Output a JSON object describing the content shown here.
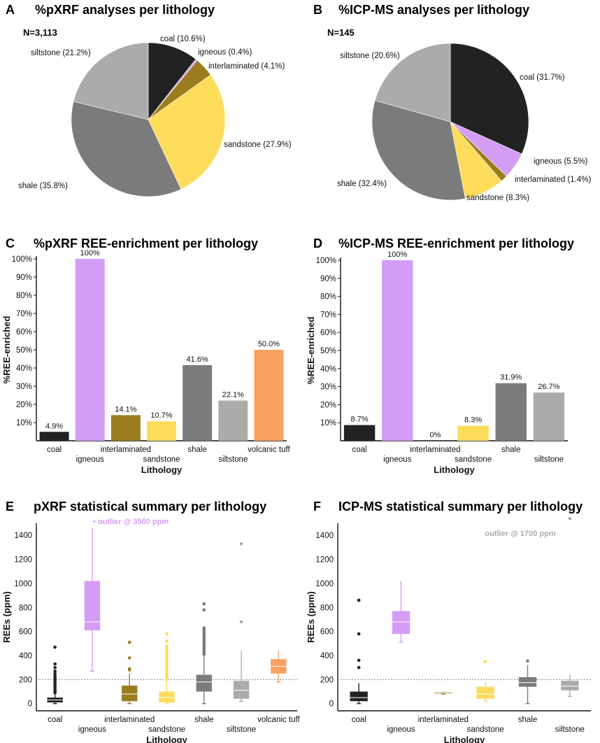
{
  "panels": {
    "A": {
      "letter": "A",
      "title": "%pXRF analyses per lithology",
      "n_label": "N=3,113"
    },
    "B": {
      "letter": "B",
      "title": "%ICP-MS analyses per lithology",
      "n_label": "N=145"
    },
    "C": {
      "letter": "C",
      "title": "%pXRF REE-enrichment per lithology"
    },
    "D": {
      "letter": "D",
      "title": "%ICP-MS REE-enrichment per lithology"
    },
    "E": {
      "letter": "E",
      "title": "pXRF statistical summary per lithology",
      "outlier_note": "• outlier @ 3500 ppm"
    },
    "F": {
      "letter": "F",
      "title": "ICP-MS statistical summary per lithology",
      "outlier_note": "outlier @ 1700 ppm"
    }
  },
  "colors": {
    "coal": "#222222",
    "igneous": "#d59cf5",
    "interlaminated": "#9b7d1f",
    "sandstone": "#fddc5c",
    "shale": "#7b7b7b",
    "siltstone": "#ababab",
    "volcanic tuff": "#f9a160"
  },
  "chart_data": [
    {
      "id": "A",
      "type": "pie",
      "title": "%pXRF analyses per lithology",
      "slices": [
        {
          "name": "coal",
          "value": 10.6,
          "label": "coal (10.6%)"
        },
        {
          "name": "igneous",
          "value": 0.4,
          "label": "igneous (0.4%)"
        },
        {
          "name": "interlaminated",
          "value": 4.1,
          "label": "interlaminated (4.1%)"
        },
        {
          "name": "sandstone",
          "value": 27.9,
          "label": "sandstone (27.9%)"
        },
        {
          "name": "shale",
          "value": 35.8,
          "label": "shale (35.8%)"
        },
        {
          "name": "siltstone",
          "value": 21.2,
          "label": "siltstone (21.2%)"
        }
      ]
    },
    {
      "id": "B",
      "type": "pie",
      "title": "%ICP-MS analyses per lithology",
      "slices": [
        {
          "name": "coal",
          "value": 31.7,
          "label": "coal (31.7%)"
        },
        {
          "name": "igneous",
          "value": 5.5,
          "label": "igneous (5.5%)"
        },
        {
          "name": "interlaminated",
          "value": 1.4,
          "label": "interlaminated (1.4%)"
        },
        {
          "name": "sandstone",
          "value": 8.3,
          "label": "sandstone (8.3%)"
        },
        {
          "name": "shale",
          "value": 32.4,
          "label": "shale (32.4%)"
        },
        {
          "name": "siltstone",
          "value": 20.6,
          "label": "siltstone (20.6%)"
        }
      ]
    },
    {
      "id": "C",
      "type": "bar",
      "title": "%pXRF REE-enrichment per lithology",
      "categories": [
        "coal",
        "igneous",
        "interlaminated",
        "sandstone",
        "shale",
        "siltstone",
        "volcanic tuff"
      ],
      "values": [
        4.9,
        100,
        14.1,
        10.7,
        41.6,
        22.1,
        50.0
      ],
      "data_labels": [
        "4.9%",
        "100%",
        "14.1%",
        "10.7%",
        "41.6%",
        "22.1%",
        "50.0%"
      ],
      "xlabel": "Lithology",
      "ylabel": "%REE-enriched",
      "ylim": [
        0,
        100
      ],
      "yticks": [
        "10%",
        "20%",
        "30%",
        "40%",
        "50%",
        "60%",
        "70%",
        "80%",
        "90%",
        "100%"
      ]
    },
    {
      "id": "D",
      "type": "bar",
      "title": "%ICP-MS REE-enrichment per lithology",
      "categories": [
        "coal",
        "igneous",
        "interlaminated",
        "sandstone",
        "shale",
        "siltstone"
      ],
      "values": [
        8.7,
        100,
        0,
        8.3,
        31.9,
        26.7
      ],
      "data_labels": [
        "8.7%",
        "100%",
        "0%",
        "8.3%",
        "31.9%",
        "26.7%"
      ],
      "xlabel": "Lithology",
      "ylabel": "%REE-enriched",
      "ylim": [
        0,
        100
      ],
      "yticks": [
        "10%",
        "20%",
        "30%",
        "40%",
        "50%",
        "60%",
        "70%",
        "80%",
        "90%",
        "100%"
      ]
    },
    {
      "id": "E",
      "type": "box",
      "title": "pXRF statistical summary per lithology",
      "categories": [
        "coal",
        "igneous",
        "interlaminated",
        "sandstone",
        "shale",
        "siltstone",
        "volcanic tuff"
      ],
      "xlabel": "Lithology",
      "ylabel": "REEs (ppm)",
      "ylim": [
        -60,
        1500
      ],
      "yticks": [
        "0",
        "200",
        "400",
        "600",
        "800",
        "1000",
        "1200",
        "1400"
      ],
      "reference_line": 200,
      "boxes": [
        {
          "min": 0,
          "q1": 10,
          "median": 30,
          "q3": 50,
          "max": 80,
          "outliers": [
            90,
            100,
            110,
            125,
            140,
            155,
            170,
            185,
            200,
            215,
            230,
            250,
            270,
            300,
            330,
            470
          ]
        },
        {
          "min": 270,
          "q1": 610,
          "median": 680,
          "q3": 1020,
          "max": 1460,
          "outliers": []
        },
        {
          "min": 0,
          "q1": 20,
          "median": 80,
          "q3": 150,
          "max": 250,
          "outliers": [
            280,
            290,
            380,
            510
          ]
        },
        {
          "min": 0,
          "q1": 10,
          "median": 50,
          "q3": 100,
          "max": 190,
          "outliers": [
            200,
            220,
            240,
            260,
            280,
            300,
            320,
            340,
            360,
            380,
            400,
            420,
            440,
            460,
            480,
            520,
            580
          ]
        },
        {
          "min": 0,
          "q1": 100,
          "median": 180,
          "q3": 240,
          "max": 400,
          "outliers": [
            410,
            425,
            440,
            455,
            470,
            485,
            500,
            515,
            530,
            545,
            560,
            575,
            590,
            605,
            620,
            630,
            780,
            830
          ]
        },
        {
          "min": 20,
          "q1": 40,
          "median": 110,
          "q3": 190,
          "max": 440,
          "outliers": [
            680,
            1330
          ]
        },
        {
          "min": 180,
          "q1": 250,
          "median": 310,
          "q3": 370,
          "max": 440,
          "outliers": []
        }
      ]
    },
    {
      "id": "F",
      "type": "box",
      "title": "ICP-MS statistical summary per lithology",
      "categories": [
        "coal",
        "igneous",
        "interlaminated",
        "sandstone",
        "shale",
        "siltstone"
      ],
      "xlabel": "Lithology",
      "ylabel": "REEs (ppm)",
      "ylim": [
        -60,
        1500
      ],
      "yticks": [
        "0",
        "200",
        "400",
        "600",
        "800",
        "1000",
        "1200",
        "1400"
      ],
      "reference_line": 200,
      "boxes": [
        {
          "min": 0,
          "q1": 20,
          "median": 50,
          "q3": 100,
          "max": 170,
          "outliers": [
            300,
            360,
            580,
            860
          ]
        },
        {
          "min": 510,
          "q1": 580,
          "median": 680,
          "q3": 770,
          "max": 1020,
          "outliers": []
        },
        {
          "min": 80,
          "q1": 85,
          "median": 90,
          "q3": 95,
          "max": 100,
          "outliers": []
        },
        {
          "min": 20,
          "q1": 40,
          "median": 80,
          "q3": 140,
          "max": 180,
          "outliers": [
            350
          ]
        },
        {
          "min": 0,
          "q1": 140,
          "median": 175,
          "q3": 220,
          "max": 320,
          "outliers": [
            355
          ]
        },
        {
          "min": 60,
          "q1": 110,
          "median": 145,
          "q3": 190,
          "max": 240,
          "outliers": [
            1540
          ]
        }
      ]
    }
  ]
}
